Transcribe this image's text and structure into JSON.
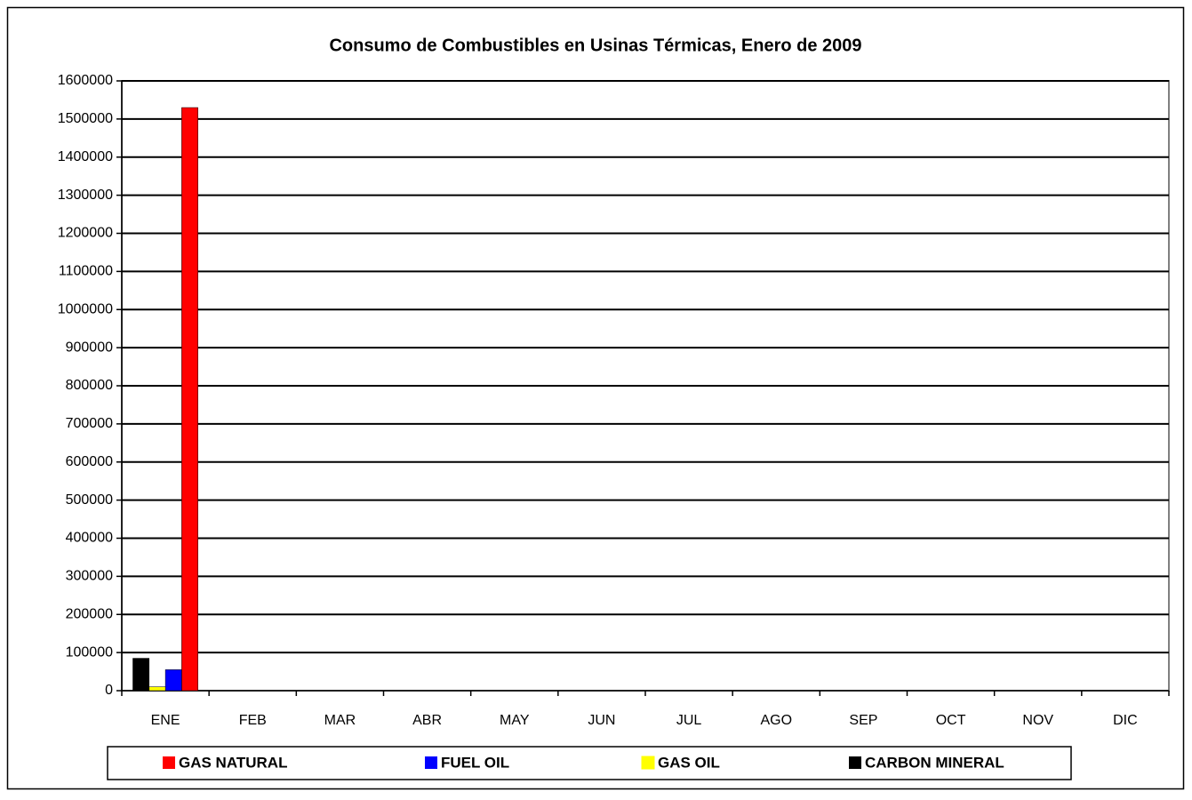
{
  "chart_data": {
    "type": "bar",
    "title": "Consumo de Combustibles en Usinas Térmicas, Enero de 2009",
    "categories": [
      "ENE",
      "FEB",
      "MAR",
      "ABR",
      "MAY",
      "JUN",
      "JUL",
      "AGO",
      "SEP",
      "OCT",
      "NOV",
      "DIC"
    ],
    "series": [
      {
        "name": "GAS NATURAL",
        "color": "#ff0000",
        "values": [
          1530000,
          null,
          null,
          null,
          null,
          null,
          null,
          null,
          null,
          null,
          null,
          null
        ]
      },
      {
        "name": "FUEL OIL",
        "color": "#0000ff",
        "values": [
          55000,
          null,
          null,
          null,
          null,
          null,
          null,
          null,
          null,
          null,
          null,
          null
        ]
      },
      {
        "name": "GAS OIL",
        "color": "#ffff00",
        "values": [
          10000,
          null,
          null,
          null,
          null,
          null,
          null,
          null,
          null,
          null,
          null,
          null
        ]
      },
      {
        "name": "CARBON MINERAL",
        "color": "#000000",
        "values": [
          85000,
          null,
          null,
          null,
          null,
          null,
          null,
          null,
          null,
          null,
          null,
          null
        ]
      }
    ],
    "ylim": [
      0,
      1600000
    ],
    "yticks": [
      0,
      100000,
      200000,
      300000,
      400000,
      500000,
      600000,
      700000,
      800000,
      900000,
      1000000,
      1100000,
      1200000,
      1300000,
      1400000,
      1500000,
      1600000
    ],
    "grid": true,
    "legend": "bottom"
  }
}
